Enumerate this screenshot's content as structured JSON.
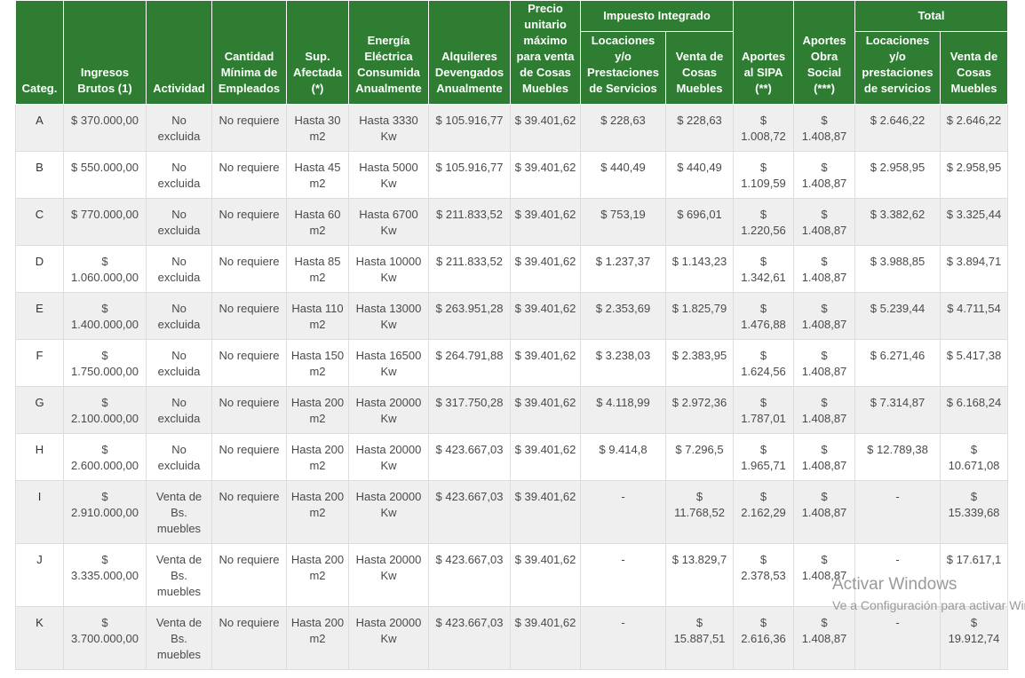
{
  "table": {
    "headers": {
      "categ": "Categ.",
      "ingresos": "Ingresos Brutos (1)",
      "actividad": "Actividad",
      "cantidad": "Cantidad Mínima de Empleados",
      "sup": "Sup. Afectada (*)",
      "energia": "Energía Eléctrica Consumida Anualmente",
      "alquileres": "Alquileres Devengados Anualmente",
      "precio": "Precio unitario máximo para venta de Cosas Muebles",
      "impuesto_group": "Impuesto Integrado",
      "imp_locaciones": "Locaciones y/o Prestaciones de Servicios",
      "imp_venta": "Venta de Cosas Muebles",
      "sipa": "Aportes al SIPA (**)",
      "obra_social": "Aportes Obra Social (***)",
      "total_group": "Total",
      "tot_locaciones": "Locaciones y/o prestaciones de servicios",
      "tot_venta": "Venta de Cosas Muebles"
    },
    "rows": [
      {
        "cat": "A",
        "ingresos": "$ 370.000,00",
        "actividad": "No excluida",
        "cantidad": "No requiere",
        "sup": "Hasta 30 m2",
        "energia": "Hasta 3330 Kw",
        "alquileres": "$ 105.916,77",
        "precio": "$ 39.401,62",
        "imp_loc": "$ 228,63",
        "imp_venta": "$ 228,63",
        "sipa": "$ 1.008,72",
        "obra": "$ 1.408,87",
        "tot_loc": "$ 2.646,22",
        "tot_venta": "$ 2.646,22"
      },
      {
        "cat": "B",
        "ingresos": "$ 550.000,00",
        "actividad": "No excluida",
        "cantidad": "No requiere",
        "sup": "Hasta 45 m2",
        "energia": "Hasta 5000 Kw",
        "alquileres": "$ 105.916,77",
        "precio": "$ 39.401,62",
        "imp_loc": "$ 440,49",
        "imp_venta": "$ 440,49",
        "sipa": "$ 1.109,59",
        "obra": "$ 1.408,87",
        "tot_loc": "$ 2.958,95",
        "tot_venta": "$ 2.958,95"
      },
      {
        "cat": "C",
        "ingresos": "$ 770.000,00",
        "actividad": "No excluida",
        "cantidad": "No requiere",
        "sup": "Hasta 60 m2",
        "energia": "Hasta 6700 Kw",
        "alquileres": "$ 211.833,52",
        "precio": "$ 39.401,62",
        "imp_loc": "$ 753,19",
        "imp_venta": "$ 696,01",
        "sipa": "$ 1.220,56",
        "obra": "$ 1.408,87",
        "tot_loc": "$ 3.382,62",
        "tot_venta": "$ 3.325,44"
      },
      {
        "cat": "D",
        "ingresos": "$ 1.060.000,00",
        "actividad": "No excluida",
        "cantidad": "No requiere",
        "sup": "Hasta 85 m2",
        "energia": "Hasta 10000 Kw",
        "alquileres": "$ 211.833,52",
        "precio": "$ 39.401,62",
        "imp_loc": "$ 1.237,37",
        "imp_venta": "$ 1.143,23",
        "sipa": "$ 1.342,61",
        "obra": "$ 1.408,87",
        "tot_loc": "$ 3.988,85",
        "tot_venta": "$ 3.894,71"
      },
      {
        "cat": "E",
        "ingresos": "$ 1.400.000,00",
        "actividad": "No excluida",
        "cantidad": "No requiere",
        "sup": "Hasta 110 m2",
        "energia": "Hasta 13000 Kw",
        "alquileres": "$ 263.951,28",
        "precio": "$ 39.401,62",
        "imp_loc": "$ 2.353,69",
        "imp_venta": "$ 1.825,79",
        "sipa": "$ 1.476,88",
        "obra": "$ 1.408,87",
        "tot_loc": "$ 5.239,44",
        "tot_venta": "$ 4.711,54"
      },
      {
        "cat": "F",
        "ingresos": "$ 1.750.000,00",
        "actividad": "No excluida",
        "cantidad": "No requiere",
        "sup": "Hasta 150 m2",
        "energia": "Hasta 16500 Kw",
        "alquileres": "$ 264.791,88",
        "precio": "$ 39.401,62",
        "imp_loc": "$ 3.238,03",
        "imp_venta": "$ 2.383,95",
        "sipa": "$ 1.624,56",
        "obra": "$ 1.408,87",
        "tot_loc": "$ 6.271,46",
        "tot_venta": "$ 5.417,38"
      },
      {
        "cat": "G",
        "ingresos": "$ 2.100.000,00",
        "actividad": "No excluida",
        "cantidad": "No requiere",
        "sup": "Hasta 200 m2",
        "energia": "Hasta 20000 Kw",
        "alquileres": "$ 317.750,28",
        "precio": "$ 39.401,62",
        "imp_loc": "$ 4.118,99",
        "imp_venta": "$ 2.972,36",
        "sipa": "$ 1.787,01",
        "obra": "$ 1.408,87",
        "tot_loc": "$ 7.314,87",
        "tot_venta": "$ 6.168,24"
      },
      {
        "cat": "H",
        "ingresos": "$ 2.600.000,00",
        "actividad": "No excluida",
        "cantidad": "No requiere",
        "sup": "Hasta 200 m2",
        "energia": "Hasta 20000 Kw",
        "alquileres": "$ 423.667,03",
        "precio": "$ 39.401,62",
        "imp_loc": "$ 9.414,8",
        "imp_venta": "$ 7.296,5",
        "sipa": "$ 1.965,71",
        "obra": "$ 1.408,87",
        "tot_loc": "$ 12.789,38",
        "tot_venta": "$ 10.671,08"
      },
      {
        "cat": "I",
        "ingresos": "$ 2.910.000,00",
        "actividad": "Venta de Bs. muebles",
        "cantidad": "No requiere",
        "sup": "Hasta 200 m2",
        "energia": "Hasta 20000 Kw",
        "alquileres": "$ 423.667,03",
        "precio": "$ 39.401,62",
        "imp_loc": "-",
        "imp_venta": "$ 11.768,52",
        "sipa": "$ 2.162,29",
        "obra": "$ 1.408,87",
        "tot_loc": "-",
        "tot_venta": "$ 15.339,68"
      },
      {
        "cat": "J",
        "ingresos": "$ 3.335.000,00",
        "actividad": "Venta de Bs. muebles",
        "cantidad": "No requiere",
        "sup": "Hasta 200 m2",
        "energia": "Hasta 20000 Kw",
        "alquileres": "$ 423.667,03",
        "precio": "$ 39.401,62",
        "imp_loc": "-",
        "imp_venta": "$ 13.829,7",
        "sipa": "$ 2.378,53",
        "obra": "$ 1.408,87",
        "tot_loc": "-",
        "tot_venta": "$ 17.617,1"
      },
      {
        "cat": "K",
        "ingresos": "$ 3.700.000,00",
        "actividad": "Venta de Bs. muebles",
        "cantidad": "No requiere",
        "sup": "Hasta 200 m2",
        "energia": "Hasta 20000 Kw",
        "alquileres": "$ 423.667,03",
        "precio": "$ 39.401,62",
        "imp_loc": "-",
        "imp_venta": "$ 15.887,51",
        "sipa": "$ 2.616,36",
        "obra": "$ 1.408,87",
        "tot_loc": "-",
        "tot_venta": "$ 19.912,74"
      }
    ]
  },
  "watermark": {
    "title": "Activar Windows",
    "subtitle": "Ve a Configuración para activar Windows."
  }
}
